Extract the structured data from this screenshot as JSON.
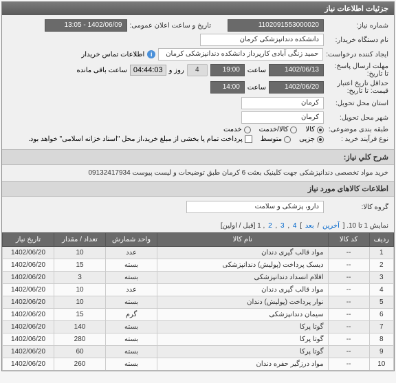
{
  "panel_title": "جزئیات اطلاعات نیاز",
  "fields": {
    "need_number_label": "شماره نیاز:",
    "need_number_value": "1102091553000020",
    "announce_datetime_label": "تاریخ و ساعت اعلان عمومی:",
    "announce_datetime_value": "1402/06/09 - 13:05",
    "buyer_org_label": "نام دستگاه خریدار:",
    "buyer_org_value": "دانشکده دندانپزشکی کرمان",
    "requester_label": "ایجاد کننده درخواست:",
    "requester_value": "حمید زنگی آبادی کارپرداز دانشکده دندانپزشکی کرمان",
    "buyer_contact_label": "اطلاعات تماس خریدار",
    "deadline_label": "مهلت ارسال پاسخ:",
    "deadline_ta": "تا تاریخ:",
    "deadline_date": "1402/06/13",
    "deadline_time_label": "ساعت",
    "deadline_time": "19:00",
    "days_label": "روز و",
    "days_value": "4",
    "countdown": "04:44:03",
    "remaining_label": "ساعت باقی مانده",
    "price_validity_label": "حداقل تاریخ اعتبار",
    "price_validity_label2": "قیمت: تا تاریخ:",
    "price_validity_date": "1402/06/20",
    "price_validity_time_label": "ساعت",
    "price_validity_time": "14:00",
    "province_label": "استان محل تحویل:",
    "province_value": "کرمان",
    "city_label": "شهر محل تحویل:",
    "city_value": "کرمان",
    "category_label": "طبقه بندی موضوعی:",
    "cat_goods": "کالا",
    "cat_service": "کالا/خدمت",
    "cat_service_only": "خدمت",
    "purchase_type_label": "نوع فرآیند خرید :",
    "pt_partial": "جزیی",
    "pt_medium": "متوسط",
    "pt_full_payment": "پرداخت تمام یا بخشی از مبلغ خرید،از محل \"اسناد خزانه اسلامی\" خواهد بود.",
    "desc_title": "شرح کلي نیاز:",
    "desc_text": "خرید مواد تخصصی دندانپزشکی جهت کلینیک بعثت 6 کرمان طبق توضیحات و لیست پیوست 09132417934",
    "items_section_title": "اطلاعات کالاهای مورد نیاز",
    "group_label": "گروه کالا:",
    "group_value": "دارو، پزشکی و سلامت",
    "pagination_text_prefix": "نمایش 1 تا 10. [",
    "pagination_last": "آخرین",
    "pagination_sep": "/",
    "pagination_next": "بعد",
    "pagination_pages": [
      "4",
      "3",
      "2"
    ],
    "pagination_current": "1",
    "pagination_suffix": "[قبل / اولین]"
  },
  "table": {
    "columns": [
      "ردیف",
      "کد کالا",
      "نام کالا",
      "واحد شمارش",
      "تعداد / مقدار",
      "تاریخ نیاز"
    ],
    "rows": [
      [
        "1",
        "--",
        "مواد قالب گیری دندان",
        "عدد",
        "10",
        "1402/06/20"
      ],
      [
        "2",
        "--",
        "دیسک پرداخت (پولیش) دندانپزشکی",
        "بسته",
        "15",
        "1402/06/20"
      ],
      [
        "3",
        "--",
        "اقلام انسداد دندانپزشکی",
        "بسته",
        "3",
        "1402/06/20"
      ],
      [
        "4",
        "--",
        "مواد قالب گیری دندان",
        "عدد",
        "10",
        "1402/06/20"
      ],
      [
        "5",
        "--",
        "نوار پرداخت (پولیش) دندان",
        "بسته",
        "10",
        "1402/06/20"
      ],
      [
        "6",
        "--",
        "سیمان دندانپزشکی",
        "گرم",
        "15",
        "1402/06/20"
      ],
      [
        "7",
        "--",
        "گوتا پرکا",
        "بسته",
        "140",
        "1402/06/20"
      ],
      [
        "8",
        "--",
        "گوتا پرکا",
        "بسته",
        "280",
        "1402/06/20"
      ],
      [
        "9",
        "--",
        "گوتا پرکا",
        "بسته",
        "60",
        "1402/06/20"
      ],
      [
        "10",
        "--",
        "مواد درزگیر حفره دندان",
        "بسته",
        "260",
        "1402/06/20"
      ]
    ]
  }
}
